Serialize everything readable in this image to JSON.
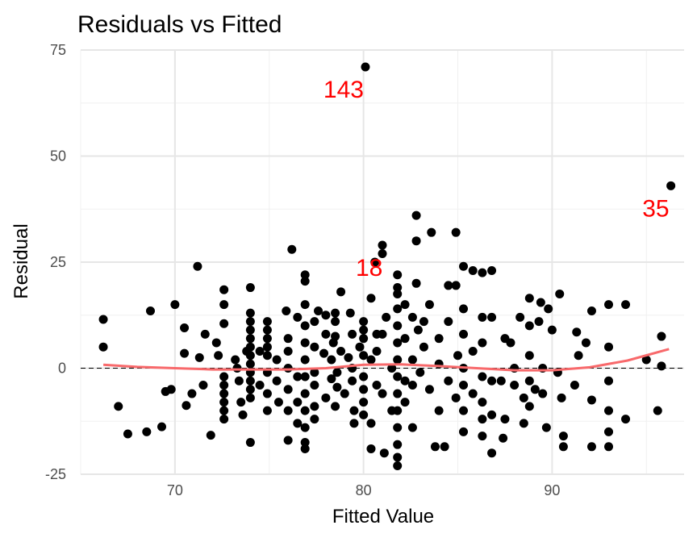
{
  "chart_data": {
    "type": "scatter",
    "title": "Residuals vs Fitted",
    "xlabel": "Fitted Value",
    "ylabel": "Residual",
    "xlim": [
      65,
      97
    ],
    "ylim": [
      -25,
      75
    ],
    "xticks": [
      70,
      80,
      90
    ],
    "yticks": [
      -25,
      0,
      25,
      50,
      75
    ],
    "grid": true,
    "point_color": "#000000",
    "smooth_color": "#F8696B",
    "reference_line": {
      "y": 0,
      "style": "dashed",
      "color": "#000000"
    },
    "annotations": [
      {
        "text": "143",
        "x": 80.1,
        "y": 71,
        "color": "#FF0000"
      },
      {
        "text": "35",
        "x": 96.3,
        "y": 43,
        "color": "#FF0000"
      },
      {
        "text": "18",
        "x": 81.1,
        "y": 29,
        "color": "#FF0000"
      }
    ],
    "smooth": {
      "x": [
        66.2,
        68,
        70,
        72,
        74,
        76,
        78,
        80,
        82,
        84,
        86,
        88,
        90,
        92,
        94,
        96.2
      ],
      "y": [
        0.8,
        0.3,
        0,
        -0.3,
        -0.3,
        -0.3,
        0,
        0.8,
        0.9,
        0.5,
        0,
        -0.5,
        -0.5,
        0.2,
        1.8,
        4.5
      ]
    },
    "points": [
      [
        66.2,
        11.5
      ],
      [
        66.2,
        5
      ],
      [
        67.0,
        -9
      ],
      [
        67.5,
        -15.5
      ],
      [
        68.5,
        -15
      ],
      [
        68.7,
        13.5
      ],
      [
        69.3,
        -13.8
      ],
      [
        69.5,
        -5.5
      ],
      [
        69.8,
        -5
      ],
      [
        70.0,
        15
      ],
      [
        70.5,
        9.5
      ],
      [
        70.5,
        3.5
      ],
      [
        70.6,
        -8.8
      ],
      [
        70.9,
        -6
      ],
      [
        71.2,
        24
      ],
      [
        71.3,
        2.5
      ],
      [
        71.5,
        -4
      ],
      [
        71.6,
        8
      ],
      [
        71.9,
        -15.8
      ],
      [
        72.2,
        6
      ],
      [
        72.3,
        3
      ],
      [
        72.6,
        18.5
      ],
      [
        72.6,
        15
      ],
      [
        72.6,
        10.5
      ],
      [
        72.6,
        -2
      ],
      [
        72.6,
        -4
      ],
      [
        72.6,
        -6
      ],
      [
        72.6,
        -8
      ],
      [
        72.6,
        -10
      ],
      [
        72.6,
        -12
      ],
      [
        73.2,
        2
      ],
      [
        73.3,
        0
      ],
      [
        73.4,
        -3
      ],
      [
        73.5,
        -8
      ],
      [
        73.8,
        4
      ],
      [
        74.0,
        19
      ],
      [
        74.0,
        13
      ],
      [
        74.0,
        11
      ],
      [
        74.0,
        9
      ],
      [
        74.0,
        7
      ],
      [
        74.0,
        5
      ],
      [
        74.0,
        3
      ],
      [
        74.0,
        1
      ],
      [
        74.0,
        -1
      ],
      [
        74.0,
        -3
      ],
      [
        74.0,
        -5
      ],
      [
        74.0,
        -7
      ],
      [
        74.0,
        -17.5
      ],
      [
        73.6,
        -11
      ],
      [
        74.5,
        -4
      ],
      [
        74.5,
        4
      ],
      [
        74.9,
        11
      ],
      [
        74.9,
        9
      ],
      [
        74.9,
        7
      ],
      [
        74.9,
        5
      ],
      [
        74.9,
        3
      ],
      [
        74.9,
        -1
      ],
      [
        74.9,
        -6
      ],
      [
        74.9,
        -10
      ],
      [
        75.4,
        2
      ],
      [
        75.4,
        -3
      ],
      [
        75.5,
        -8
      ],
      [
        75.9,
        13.5
      ],
      [
        76.0,
        7
      ],
      [
        76.0,
        4
      ],
      [
        76.0,
        0
      ],
      [
        76.0,
        -5
      ],
      [
        76.0,
        -10
      ],
      [
        76.0,
        -17
      ],
      [
        76.2,
        28
      ],
      [
        76.5,
        12
      ],
      [
        76.5,
        -2
      ],
      [
        76.5,
        -8
      ],
      [
        76.5,
        -13
      ],
      [
        76.9,
        22
      ],
      [
        76.9,
        20.5
      ],
      [
        76.9,
        15
      ],
      [
        76.9,
        10
      ],
      [
        76.9,
        6
      ],
      [
        76.9,
        2
      ],
      [
        76.9,
        -2
      ],
      [
        76.9,
        -6
      ],
      [
        76.9,
        -10
      ],
      [
        76.9,
        -14
      ],
      [
        76.9,
        -17.5
      ],
      [
        76.9,
        -19
      ],
      [
        77.4,
        11
      ],
      [
        77.4,
        5
      ],
      [
        77.4,
        -1
      ],
      [
        77.4,
        -4
      ],
      [
        77.4,
        -9
      ],
      [
        77.4,
        -12
      ],
      [
        77.6,
        13.5
      ],
      [
        77.9,
        3.5
      ],
      [
        78.0,
        8
      ],
      [
        78.0,
        12.5
      ],
      [
        78.0,
        -7
      ],
      [
        78.3,
        2
      ],
      [
        78.3,
        -2.5
      ],
      [
        78.4,
        6
      ],
      [
        78.5,
        11
      ],
      [
        78.6,
        -1
      ],
      [
        78.6,
        -4.5
      ],
      [
        78.5,
        13
      ],
      [
        78.5,
        7.5
      ],
      [
        78.5,
        -9
      ],
      [
        78.8,
        18
      ],
      [
        78.8,
        4
      ],
      [
        79.0,
        -6
      ],
      [
        79.2,
        2.5
      ],
      [
        79.3,
        13
      ],
      [
        79.4,
        8
      ],
      [
        79.4,
        0
      ],
      [
        79.4,
        -3
      ],
      [
        79.5,
        -10
      ],
      [
        79.5,
        -13
      ],
      [
        79.8,
        5
      ],
      [
        80.0,
        11
      ],
      [
        80.0,
        9
      ],
      [
        80.0,
        7
      ],
      [
        80.0,
        3
      ],
      [
        80.0,
        -2
      ],
      [
        80.0,
        -5
      ],
      [
        80.0,
        -8
      ],
      [
        80.0,
        -11
      ],
      [
        80.1,
        71
      ],
      [
        80.4,
        16.5
      ],
      [
        80.4,
        2
      ],
      [
        80.4,
        -13
      ],
      [
        80.4,
        -19
      ],
      [
        80.6,
        25
      ],
      [
        80.7,
        8
      ],
      [
        80.7,
        4
      ],
      [
        80.7,
        -4
      ],
      [
        81.0,
        27
      ],
      [
        81.0,
        29
      ],
      [
        81.0,
        8
      ],
      [
        81.0,
        -6
      ],
      [
        81.1,
        -20
      ],
      [
        81.2,
        12
      ],
      [
        81.5,
        0
      ],
      [
        81.5,
        -10
      ],
      [
        81.8,
        22
      ],
      [
        81.8,
        19
      ],
      [
        81.8,
        17.5
      ],
      [
        81.8,
        14
      ],
      [
        81.8,
        10
      ],
      [
        81.8,
        6
      ],
      [
        81.8,
        2
      ],
      [
        81.8,
        -2
      ],
      [
        81.8,
        -6
      ],
      [
        81.8,
        -10
      ],
      [
        81.8,
        -14
      ],
      [
        81.8,
        -18
      ],
      [
        81.8,
        -21
      ],
      [
        81.8,
        -23
      ],
      [
        82.2,
        15
      ],
      [
        82.2,
        7
      ],
      [
        82.2,
        -3
      ],
      [
        82.2,
        -8
      ],
      [
        82.6,
        12
      ],
      [
        82.6,
        2
      ],
      [
        82.6,
        -4
      ],
      [
        82.6,
        -14
      ],
      [
        82.8,
        36
      ],
      [
        82.8,
        30
      ],
      [
        82.8,
        20
      ],
      [
        82.9,
        9
      ],
      [
        83.0,
        -1
      ],
      [
        83.2,
        11
      ],
      [
        83.2,
        5
      ],
      [
        83.5,
        15
      ],
      [
        83.5,
        -5
      ],
      [
        83.6,
        32
      ],
      [
        83.8,
        -18.5
      ],
      [
        84.0,
        7
      ],
      [
        84.0,
        1
      ],
      [
        84.0,
        -10
      ],
      [
        84.3,
        -18.5
      ],
      [
        84.5,
        19.5
      ],
      [
        84.5,
        11
      ],
      [
        84.5,
        -3
      ],
      [
        84.9,
        32
      ],
      [
        84.9,
        19.5
      ],
      [
        84.9,
        -7
      ],
      [
        85.0,
        3
      ],
      [
        85.3,
        24
      ],
      [
        85.3,
        14
      ],
      [
        85.3,
        8
      ],
      [
        85.3,
        0
      ],
      [
        85.3,
        -4
      ],
      [
        85.3,
        -10
      ],
      [
        85.3,
        -15
      ],
      [
        85.8,
        23
      ],
      [
        85.8,
        4
      ],
      [
        85.8,
        -6
      ],
      [
        86.3,
        22.5
      ],
      [
        86.3,
        12
      ],
      [
        86.3,
        6
      ],
      [
        86.3,
        -2
      ],
      [
        86.3,
        -8
      ],
      [
        86.3,
        -12
      ],
      [
        86.3,
        -16
      ],
      [
        86.8,
        23
      ],
      [
        86.8,
        12
      ],
      [
        86.8,
        -3
      ],
      [
        86.8,
        -20
      ],
      [
        86.8,
        -11
      ],
      [
        87.3,
        -3
      ],
      [
        87.4,
        -16.5
      ],
      [
        87.5,
        7
      ],
      [
        87.5,
        -12
      ],
      [
        87.8,
        6
      ],
      [
        88.0,
        0
      ],
      [
        88.0,
        -4
      ],
      [
        88.3,
        12
      ],
      [
        88.5,
        -7
      ],
      [
        88.5,
        -13
      ],
      [
        88.8,
        16.5
      ],
      [
        88.8,
        10
      ],
      [
        88.8,
        3
      ],
      [
        88.8,
        -3
      ],
      [
        88.8,
        -9
      ],
      [
        89.1,
        -5
      ],
      [
        89.3,
        11
      ],
      [
        89.4,
        15.5
      ],
      [
        89.5,
        0
      ],
      [
        89.5,
        -6
      ],
      [
        89.7,
        -14
      ],
      [
        89.8,
        14
      ],
      [
        90.0,
        9
      ],
      [
        90.3,
        -1
      ],
      [
        90.4,
        17.5
      ],
      [
        90.5,
        -7
      ],
      [
        90.6,
        -16
      ],
      [
        90.6,
        -18.5
      ],
      [
        91.2,
        -4
      ],
      [
        91.3,
        8.5
      ],
      [
        91.4,
        3
      ],
      [
        91.8,
        6
      ],
      [
        92.1,
        -18.5
      ],
      [
        92.1,
        13.5
      ],
      [
        92.1,
        -7.5
      ],
      [
        93.0,
        -3
      ],
      [
        93.0,
        5
      ],
      [
        93.0,
        -15
      ],
      [
        93.0,
        -18.5
      ],
      [
        93.0,
        15
      ],
      [
        93.0,
        -10
      ],
      [
        93.9,
        15
      ],
      [
        93.9,
        -12
      ],
      [
        95.0,
        2
      ],
      [
        95.6,
        -10
      ],
      [
        95.8,
        7.5
      ],
      [
        95.8,
        0.5
      ],
      [
        96.3,
        43
      ]
    ]
  }
}
